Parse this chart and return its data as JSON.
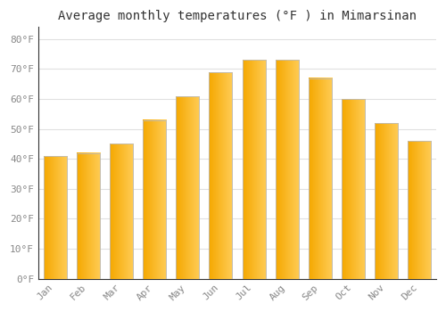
{
  "title": "Average monthly temperatures (°F ) in Mimarsinan",
  "months": [
    "Jan",
    "Feb",
    "Mar",
    "Apr",
    "May",
    "Jun",
    "Jul",
    "Aug",
    "Sep",
    "Oct",
    "Nov",
    "Dec"
  ],
  "values": [
    41,
    42,
    45,
    53,
    61,
    69,
    73,
    73,
    67,
    60,
    52,
    46
  ],
  "bar_color_left": "#F5A800",
  "bar_color_right": "#FFCC55",
  "bar_edge_color": "#BBBBBB",
  "background_color": "#FFFFFF",
  "grid_color": "#E0E0E0",
  "tick_label_color": "#888888",
  "title_color": "#333333",
  "ylim": [
    0,
    84
  ],
  "yticks": [
    0,
    10,
    20,
    30,
    40,
    50,
    60,
    70,
    80
  ],
  "ytick_labels": [
    "0°F",
    "10°F",
    "20°F",
    "30°F",
    "40°F",
    "50°F",
    "60°F",
    "70°F",
    "80°F"
  ],
  "title_fontsize": 10,
  "tick_fontsize": 8
}
